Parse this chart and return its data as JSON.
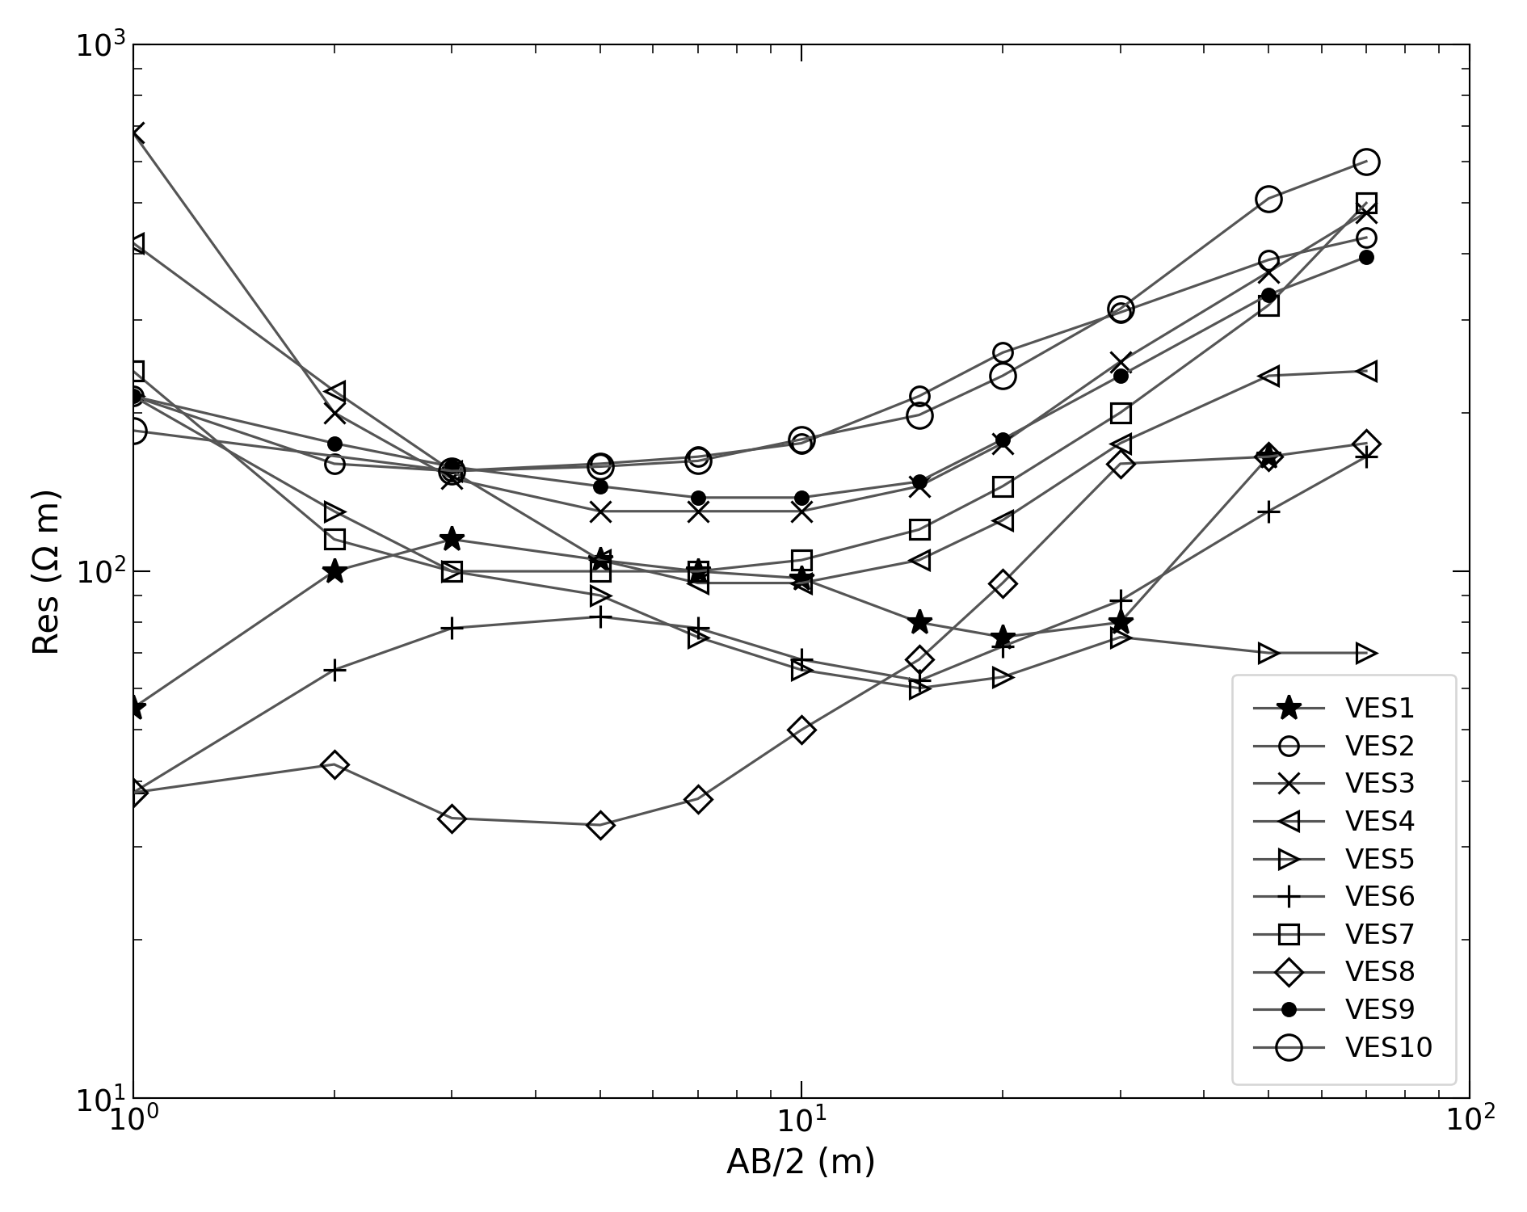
{
  "title": "",
  "xlabel": "AB/2 (m)",
  "ylabel": "Res (Ω m)",
  "xlim": [
    1,
    100
  ],
  "ylim": [
    10,
    1000
  ],
  "color": "#555555",
  "linewidth": 1.2,
  "markersize": 9,
  "series": [
    {
      "name": "VES1",
      "marker": "*",
      "mfc": "black",
      "mec": "black",
      "ms": 12,
      "x": [
        1,
        2,
        3,
        5,
        7,
        10,
        15,
        20,
        30,
        50
      ],
      "y": [
        55,
        100,
        115,
        105,
        100,
        97,
        80,
        75,
        80,
        165
      ]
    },
    {
      "name": "VES2",
      "marker": "o",
      "mfc": "none",
      "mec": "black",
      "ms": 9,
      "x": [
        1,
        2,
        3,
        5,
        7,
        10,
        15,
        20,
        30,
        50,
        70
      ],
      "y": [
        215,
        160,
        155,
        160,
        165,
        175,
        215,
        260,
        310,
        390,
        430
      ]
    },
    {
      "name": "VES3",
      "marker": "x",
      "mfc": "black",
      "mec": "black",
      "ms": 10,
      "x": [
        1,
        2,
        3,
        5,
        7,
        10,
        15,
        20,
        30,
        50,
        70
      ],
      "y": [
        680,
        200,
        150,
        130,
        130,
        130,
        145,
        175,
        250,
        370,
        480
      ]
    },
    {
      "name": "VES4",
      "marker": "<",
      "mfc": "none",
      "mec": "black",
      "ms": 9,
      "x": [
        1,
        2,
        3,
        5,
        7,
        10,
        15,
        20,
        30,
        50,
        70
      ],
      "y": [
        420,
        220,
        155,
        105,
        95,
        95,
        105,
        125,
        175,
        235,
        240
      ]
    },
    {
      "name": "VES5",
      "marker": ">",
      "mfc": "none",
      "mec": "black",
      "ms": 9,
      "x": [
        1,
        2,
        3,
        5,
        7,
        10,
        15,
        20,
        30,
        50,
        70
      ],
      "y": [
        215,
        130,
        100,
        90,
        75,
        65,
        60,
        63,
        75,
        70,
        70
      ]
    },
    {
      "name": "VES6",
      "marker": "+",
      "mfc": "black",
      "mec": "black",
      "ms": 11,
      "x": [
        1,
        2,
        3,
        5,
        7,
        10,
        15,
        20,
        30,
        50,
        70
      ],
      "y": [
        38,
        65,
        78,
        82,
        78,
        68,
        62,
        72,
        88,
        130,
        165
      ]
    },
    {
      "name": "VES7",
      "marker": "s",
      "mfc": "none",
      "mec": "black",
      "ms": 9,
      "x": [
        1,
        2,
        3,
        5,
        7,
        10,
        15,
        20,
        30,
        50,
        70
      ],
      "y": [
        240,
        115,
        100,
        100,
        100,
        105,
        120,
        145,
        200,
        320,
        500
      ]
    },
    {
      "name": "VES8",
      "marker": "D",
      "mfc": "none",
      "mec": "black",
      "ms": 9,
      "x": [
        1,
        2,
        3,
        5,
        7,
        10,
        15,
        20,
        30,
        50,
        70
      ],
      "y": [
        38,
        43,
        34,
        33,
        37,
        50,
        68,
        95,
        160,
        165,
        175
      ]
    },
    {
      "name": "VES9",
      "marker": "o",
      "mfc": "black",
      "mec": "black",
      "ms": 6,
      "x": [
        1,
        2,
        3,
        5,
        7,
        10,
        15,
        20,
        30,
        50,
        70
      ],
      "y": [
        215,
        175,
        158,
        145,
        138,
        138,
        148,
        178,
        235,
        335,
        395
      ]
    },
    {
      "name": "VES10",
      "marker": "o",
      "mfc": "none",
      "mec": "black",
      "ms": 12,
      "x": [
        1,
        3,
        5,
        7,
        10,
        15,
        20,
        30,
        50,
        70
      ],
      "y": [
        185,
        155,
        158,
        162,
        178,
        198,
        235,
        315,
        510,
        600
      ]
    }
  ]
}
